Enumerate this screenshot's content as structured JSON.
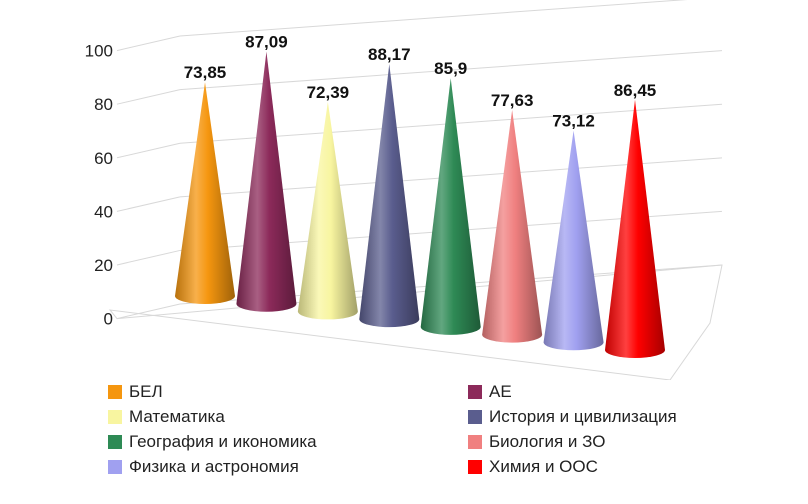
{
  "chart_data": {
    "type": "bar",
    "shape": "3d-cone",
    "categories": [
      "БЕЛ",
      "АЕ",
      "Математика",
      "История и цивилизация",
      "География и икономика",
      "Биология и ЗО",
      "Физика и астрономия",
      "Химия и ООС"
    ],
    "values": [
      73.85,
      87.09,
      72.39,
      88.17,
      85.9,
      77.63,
      73.12,
      86.45
    ],
    "value_labels": [
      "73,85",
      "87,09",
      "72,39",
      "88,17",
      "85,9",
      "77,63",
      "73,12",
      "86,45"
    ],
    "colors": [
      "#F5960F",
      "#8C2A5A",
      "#F8F5A0",
      "#5A5D8E",
      "#2E8A55",
      "#F08080",
      "#A0A0F0",
      "#FF0000"
    ],
    "ylim": [
      0,
      100
    ],
    "yticks": [
      "0",
      "20",
      "40",
      "60",
      "80",
      "100"
    ],
    "grid": true,
    "legend_position": "bottom",
    "title": "",
    "xlabel": "",
    "ylabel": ""
  }
}
